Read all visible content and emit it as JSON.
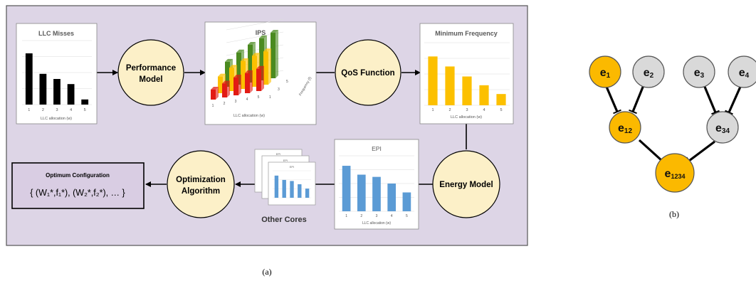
{
  "panel_a": {
    "caption": "(a)",
    "llc_misses_title": "LLC Misses",
    "llc_misses_xlabel": "LLC allocation (w)",
    "ips_title": "IPS",
    "ips_xlabel": "LLC allocation (w)",
    "ips_zlabel": "Frequency (f)",
    "min_freq_title": "Minimum Frequency",
    "min_freq_xlabel": "LLC allocation (w)",
    "epi_title": "EPI",
    "epi_xlabel": "LLC allocation (w)",
    "mini_epi_title": "EPI",
    "other_cores_label": "Other Cores",
    "performance_model": [
      "Performance",
      "Model"
    ],
    "qos_function": "QoS Function",
    "energy_model": "Energy Model",
    "optimization_algorithm": [
      "Optimization",
      "Algorithm"
    ],
    "optimum_title": "Optimum Configuration",
    "optimum_formula": "{ (W₁*,f₁*), (W₂*,f₂*), … }",
    "colors": {
      "panel_bg": "#ddd5e6",
      "circle_fill": "#fcf0c8",
      "black_bar": "#000000",
      "yellow_bar": "#fcc000",
      "blue_bar": "#5b9bd5",
      "red_bar": "#e21b14",
      "green_bar": "#4a8a1f"
    }
  },
  "panel_b": {
    "caption": "(b)",
    "nodes": [
      {
        "id": "e1",
        "base": "e",
        "sub": "1",
        "color": "#fbb900"
      },
      {
        "id": "e2",
        "base": "e",
        "sub": "2",
        "color": "#d9d9d9"
      },
      {
        "id": "e3",
        "base": "e",
        "sub": "3",
        "color": "#d9d9d9"
      },
      {
        "id": "e4",
        "base": "e",
        "sub": "4",
        "color": "#d9d9d9"
      },
      {
        "id": "e12",
        "base": "e",
        "sub": "12",
        "color": "#fbb900"
      },
      {
        "id": "e34",
        "base": "e",
        "sub": "34",
        "color": "#d9d9d9"
      },
      {
        "id": "e1234",
        "base": "e",
        "sub": "1234",
        "color": "#fbb900"
      }
    ]
  },
  "chart_data": [
    {
      "type": "bar",
      "title": "LLC Misses",
      "xlabel": "LLC allocation (w)",
      "categories": [
        "1",
        "2",
        "3",
        "4",
        "5"
      ],
      "values": [
        0.8,
        0.48,
        0.4,
        0.32,
        0.08
      ],
      "color": "#000000"
    },
    {
      "type": "bar",
      "title": "IPS",
      "xlabel": "LLC allocation (w)",
      "zlabel": "Frequency (f)",
      "categories": [
        "1",
        "2",
        "3",
        "4",
        "5"
      ],
      "depth_categories": [
        "1",
        "3",
        "5"
      ],
      "series": [
        {
          "values": [
            0.18,
            0.25,
            0.32,
            0.36,
            0.4
          ],
          "color": "#e21b14"
        },
        {
          "values": [
            0.3,
            0.42,
            0.5,
            0.56,
            0.6
          ],
          "color": "#fcc000"
        },
        {
          "values": [
            0.45,
            0.58,
            0.68,
            0.76,
            0.82
          ],
          "color": "#4a8a1f"
        }
      ]
    },
    {
      "type": "bar",
      "title": "Minimum Frequency",
      "xlabel": "LLC allocation (w)",
      "categories": [
        "1",
        "2",
        "3",
        "4",
        "5"
      ],
      "values": [
        0.78,
        0.62,
        0.46,
        0.32,
        0.18
      ],
      "color": "#fcc000"
    },
    {
      "type": "bar",
      "title": "EPI",
      "xlabel": "LLC allocation (w)",
      "categories": [
        "1",
        "2",
        "3",
        "4",
        "5"
      ],
      "values": [
        0.82,
        0.66,
        0.62,
        0.5,
        0.34
      ],
      "color": "#5b9bd5"
    }
  ]
}
